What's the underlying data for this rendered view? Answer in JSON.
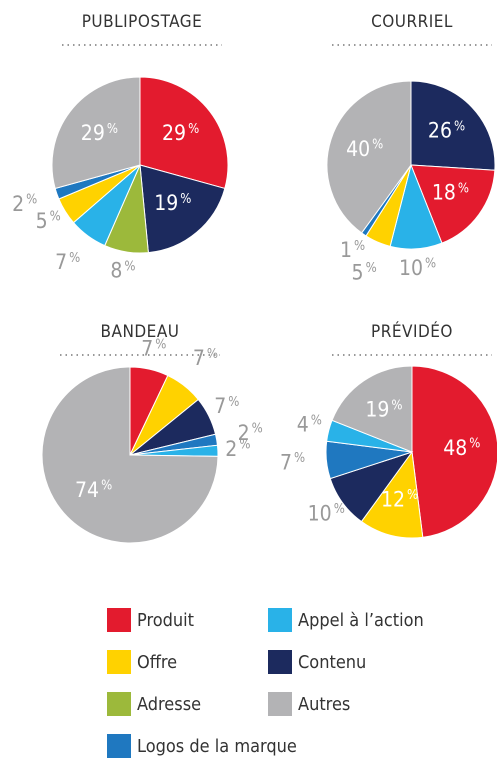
{
  "chart_data": [
    {
      "type": "pie",
      "title": "PUBLIPOSTAGE",
      "categories": [
        "Produit",
        "Contenu",
        "Adresse",
        "Appel à l’action",
        "Offre",
        "Logos de la marque",
        "Autres"
      ],
      "values": [
        29,
        19,
        8,
        7,
        5,
        2,
        29
      ],
      "value_labels": [
        "29 %",
        "19 %",
        "8 %",
        "7 %",
        "5 %",
        "2 %",
        "29 %"
      ],
      "colors": [
        "#e31b2e",
        "#1c2a5e",
        "#9cb93b",
        "#29b2e8",
        "#ffd200",
        "#1f78c0",
        "#b3b3b5"
      ]
    },
    {
      "type": "pie",
      "title": "COURRIEL",
      "categories": [
        "Contenu",
        "Produit",
        "Appel à l’action",
        "Offre",
        "Logos de la marque",
        "Autres"
      ],
      "values": [
        26,
        18,
        10,
        5,
        1,
        40
      ],
      "value_labels": [
        "26 %",
        "18 %",
        "10 %",
        "5 %",
        "1 %",
        "40 %"
      ],
      "colors": [
        "#1c2a5e",
        "#e31b2e",
        "#29b2e8",
        "#ffd200",
        "#1f78c0",
        "#b3b3b5"
      ]
    },
    {
      "type": "pie",
      "title": "BANDEAU",
      "categories": [
        "Produit",
        "Offre",
        "Contenu",
        "Logos de la marque",
        "Appel à l’action",
        "Autres"
      ],
      "values": [
        7,
        7,
        7,
        2,
        2,
        74
      ],
      "value_labels": [
        "7 %",
        "7 %",
        "7 %",
        "2 %",
        "2 %",
        "74 %"
      ],
      "colors": [
        "#e31b2e",
        "#ffd200",
        "#1c2a5e",
        "#1f78c0",
        "#29b2e8",
        "#b3b3b5"
      ]
    },
    {
      "type": "pie",
      "title": "PRÉVIDÉO",
      "categories": [
        "Produit",
        "Offre",
        "Contenu",
        "Logos de la marque",
        "Appel à l’action",
        "Autres"
      ],
      "values": [
        48,
        12,
        10,
        7,
        4,
        19
      ],
      "value_labels": [
        "48 %",
        "12 %",
        "10 %",
        "7 %",
        "4 %",
        "19 %"
      ],
      "colors": [
        "#e31b2e",
        "#ffd200",
        "#1c2a5e",
        "#1f78c0",
        "#29b2e8",
        "#b3b3b5"
      ]
    }
  ],
  "legend": {
    "labels": [
      "Produit",
      "Appel à l’action",
      "Offre",
      "Contenu",
      "Adresse",
      "Autres",
      "Logos de la marque"
    ],
    "colors": [
      "#e31b2e",
      "#29b2e8",
      "#ffd200",
      "#1c2a5e",
      "#9cb93b",
      "#b3b3b5",
      "#1f78c0"
    ]
  }
}
